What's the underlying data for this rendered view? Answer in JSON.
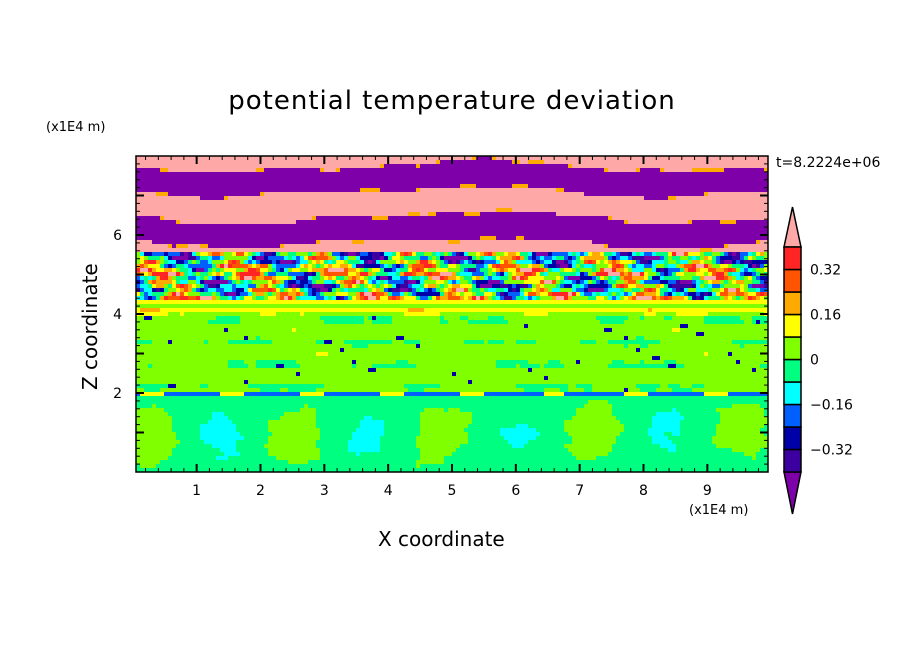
{
  "chart_data": {
    "type": "heatmap",
    "subtype": "filled-contour",
    "title": "potential temperature deviation",
    "xlabel": "X coordinate",
    "ylabel": "Z coordinate",
    "x_unit": "(x1E4 m)",
    "y_unit": "(x1E4 m)",
    "time_label": "t=8.2224e+06",
    "xlim": [
      0.05,
      9.95
    ],
    "ylim": [
      0,
      8
    ],
    "x_ticks": [
      1,
      2,
      3,
      4,
      5,
      6,
      7,
      8,
      9
    ],
    "y_ticks": [
      2,
      4,
      6
    ],
    "colorbar": {
      "levels": [
        -0.4,
        -0.32,
        -0.24,
        -0.16,
        -0.08,
        0,
        0.08,
        0.16,
        0.24,
        0.32,
        0.4
      ],
      "tick_labels": [
        "0.32",
        "0.16",
        "0",
        "-0.16",
        "-0.32"
      ],
      "tick_values": [
        0.32,
        0.16,
        0,
        -0.16,
        -0.32
      ],
      "colors": [
        "#7e00a8",
        "#3c00a0",
        "#0000a8",
        "#0060ff",
        "#00ffff",
        "#00ff80",
        "#80ff00",
        "#ffff00",
        "#ffaa00",
        "#ff5500",
        "#ff2525",
        "#ffa8a8"
      ],
      "extend": "both"
    },
    "description_of_structure": "",
    "grid": false
  }
}
